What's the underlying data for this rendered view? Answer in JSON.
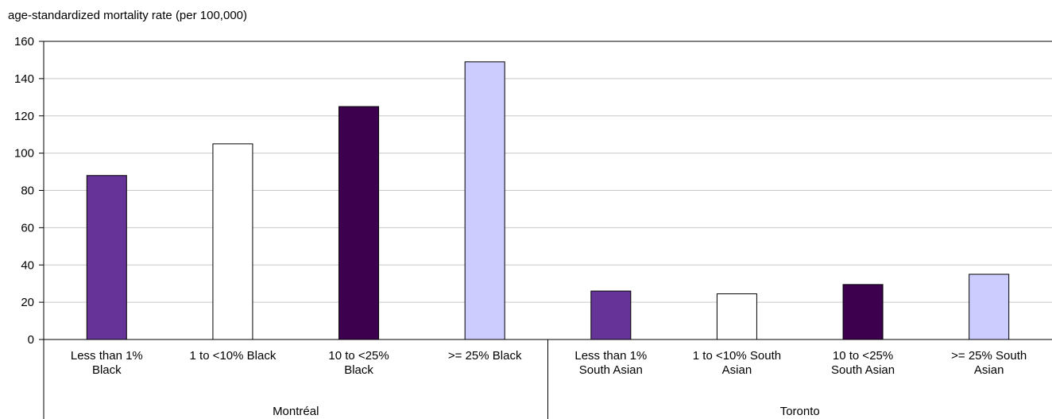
{
  "chart_data": {
    "type": "bar",
    "title": "",
    "ylabel": "age-standardized mortality rate (per 100,000)",
    "xlabel": "",
    "ylim": [
      0,
      160
    ],
    "yticks": [
      0,
      20,
      40,
      60,
      80,
      100,
      120,
      140,
      160
    ],
    "grid": true,
    "legend": "none",
    "groups": [
      {
        "name": "Montréal",
        "categories": [
          {
            "label_lines": [
              "Less than 1%",
              "Black"
            ],
            "value": 88,
            "color": "#663399"
          },
          {
            "label_lines": [
              "1 to <10% Black"
            ],
            "value": 105,
            "color": "#ffffff"
          },
          {
            "label_lines": [
              "10 to <25%",
              "Black"
            ],
            "value": 125,
            "color": "#3c004f"
          },
          {
            "label_lines": [
              ">= 25% Black"
            ],
            "value": 149,
            "color": "#ccccff"
          }
        ]
      },
      {
        "name": "Toronto",
        "categories": [
          {
            "label_lines": [
              "Less than 1%",
              "South Asian"
            ],
            "value": 26,
            "color": "#663399"
          },
          {
            "label_lines": [
              "1 to <10% South",
              "Asian"
            ],
            "value": 24.5,
            "color": "#ffffff"
          },
          {
            "label_lines": [
              "10 to <25%",
              "South Asian"
            ],
            "value": 29.5,
            "color": "#3c004f"
          },
          {
            "label_lines": [
              ">= 25% South",
              "Asian"
            ],
            "value": 35,
            "color": "#ccccff"
          }
        ]
      }
    ]
  }
}
